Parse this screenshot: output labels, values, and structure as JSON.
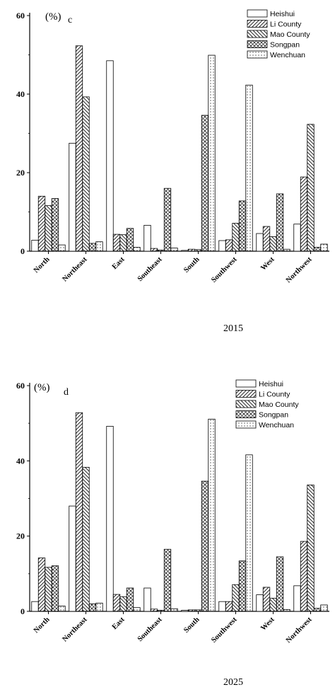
{
  "chart_data": [
    {
      "type": "bar",
      "panel_label": "c",
      "unit_label": "(%)",
      "caption": "2015",
      "categories": [
        "North",
        "Northeast",
        "East",
        "Southeast",
        "South",
        "Southwest",
        "West",
        "Northwest"
      ],
      "ylim": [
        0,
        60
      ],
      "yticks": [
        0,
        20,
        40,
        60
      ],
      "legend_position": "top-right",
      "series": [
        {
          "name": "Heishui",
          "pattern": "none",
          "values": [
            2.8,
            27.5,
            48.5,
            6.6,
            0.2,
            2.7,
            4.5,
            6.9
          ]
        },
        {
          "name": "Li County",
          "pattern": "forward",
          "values": [
            14.0,
            52.3,
            4.3,
            0.7,
            0.5,
            2.9,
            6.3,
            18.9
          ]
        },
        {
          "name": "Mao County",
          "pattern": "backward",
          "values": [
            11.6,
            39.3,
            4.2,
            0.3,
            0.4,
            7.1,
            3.7,
            32.3
          ]
        },
        {
          "name": "Songpan",
          "pattern": "cross",
          "values": [
            13.4,
            2.0,
            5.8,
            16.0,
            34.6,
            12.8,
            14.6,
            1.0
          ]
        },
        {
          "name": "Wenchuan",
          "pattern": "dots",
          "values": [
            1.6,
            2.4,
            1.0,
            0.8,
            49.9,
            42.3,
            0.5,
            1.8
          ]
        }
      ]
    },
    {
      "type": "bar",
      "panel_label": "d",
      "unit_label": "(%)",
      "caption": "2025",
      "categories": [
        "North",
        "Northeast",
        "East",
        "Southeast",
        "South",
        "Southwest",
        "West",
        "Northwest"
      ],
      "ylim": [
        0,
        60
      ],
      "yticks": [
        0,
        20,
        40,
        60
      ],
      "legend_position": "top-right",
      "series": [
        {
          "name": "Heishui",
          "pattern": "none",
          "values": [
            2.6,
            28.0,
            49.2,
            6.2,
            0.3,
            2.6,
            4.4,
            6.8
          ]
        },
        {
          "name": "Li County",
          "pattern": "forward",
          "values": [
            14.2,
            52.8,
            4.5,
            0.6,
            0.4,
            2.6,
            6.4,
            18.6
          ]
        },
        {
          "name": "Mao County",
          "pattern": "backward",
          "values": [
            11.7,
            38.3,
            3.9,
            0.3,
            0.4,
            7.1,
            3.5,
            33.6
          ]
        },
        {
          "name": "Songpan",
          "pattern": "cross",
          "values": [
            12.1,
            2.0,
            6.2,
            16.5,
            34.6,
            13.4,
            14.5,
            0.8
          ]
        },
        {
          "name": "Wenchuan",
          "pattern": "dots",
          "values": [
            1.4,
            2.2,
            1.0,
            0.7,
            51.1,
            41.6,
            0.5,
            1.7
          ]
        }
      ]
    }
  ]
}
